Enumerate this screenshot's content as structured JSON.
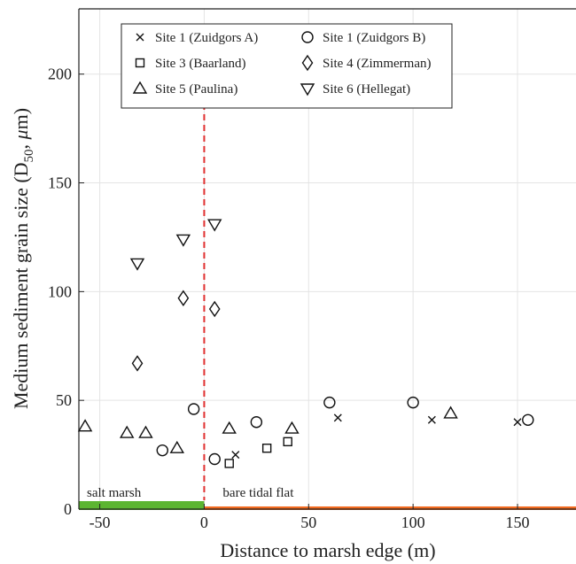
{
  "chart_data": {
    "type": "scatter",
    "xlabel": "Distance to marsh edge (m)",
    "ylabel_main": "Medium sediment grain size (D",
    "ylabel_sub": "50",
    "ylabel_tail": ", ",
    "ylabel_mu": "μ",
    "ylabel_unit": "m)",
    "xlim": [
      -60,
      178
    ],
    "ylim": [
      0,
      230
    ],
    "xticks": [
      -50,
      0,
      50,
      100,
      150
    ],
    "yticks": [
      0,
      50,
      100,
      150,
      200
    ],
    "grid": true,
    "marsh_edge_x": 0,
    "regions": [
      {
        "label": "salt marsh",
        "x_start": -60,
        "x_end": 0,
        "color": "#5cb531"
      },
      {
        "label": "bare tidal flat",
        "x_start": 0,
        "x_end": 178,
        "color": "#f26b21"
      }
    ],
    "colors": {
      "marsh_edge_line": "#e03030",
      "marker": "#111111"
    },
    "series": [
      {
        "name": "Site 1 (Zuidgors A)",
        "marker": "x",
        "points": [
          [
            15,
            25
          ],
          [
            64,
            42
          ],
          [
            109,
            41
          ],
          [
            150,
            40
          ]
        ]
      },
      {
        "name": "Site 1 (Zuidgors B)",
        "marker": "circle",
        "points": [
          [
            -20,
            27
          ],
          [
            -5,
            46
          ],
          [
            5,
            23
          ],
          [
            25,
            40
          ],
          [
            60,
            49
          ],
          [
            100,
            49
          ],
          [
            155,
            41
          ]
        ]
      },
      {
        "name": "Site 3 (Baarland)",
        "marker": "square",
        "points": [
          [
            12,
            21
          ],
          [
            30,
            28
          ],
          [
            40,
            31
          ]
        ]
      },
      {
        "name": "Site 4 (Zimmerman)",
        "marker": "diamond",
        "points": [
          [
            -32,
            67
          ],
          [
            -10,
            97
          ],
          [
            5,
            92
          ]
        ]
      },
      {
        "name": "Site 5 (Paulina)",
        "marker": "triangle-up",
        "points": [
          [
            -57,
            38
          ],
          [
            -37,
            35
          ],
          [
            -28,
            35
          ],
          [
            -13,
            28
          ],
          [
            12,
            37
          ],
          [
            42,
            37
          ],
          [
            118,
            44
          ]
        ]
      },
      {
        "name": "Site 6 (Hellegat)",
        "marker": "triangle-down",
        "points": [
          [
            -32,
            113
          ],
          [
            -10,
            124
          ],
          [
            5,
            131
          ]
        ]
      }
    ]
  }
}
